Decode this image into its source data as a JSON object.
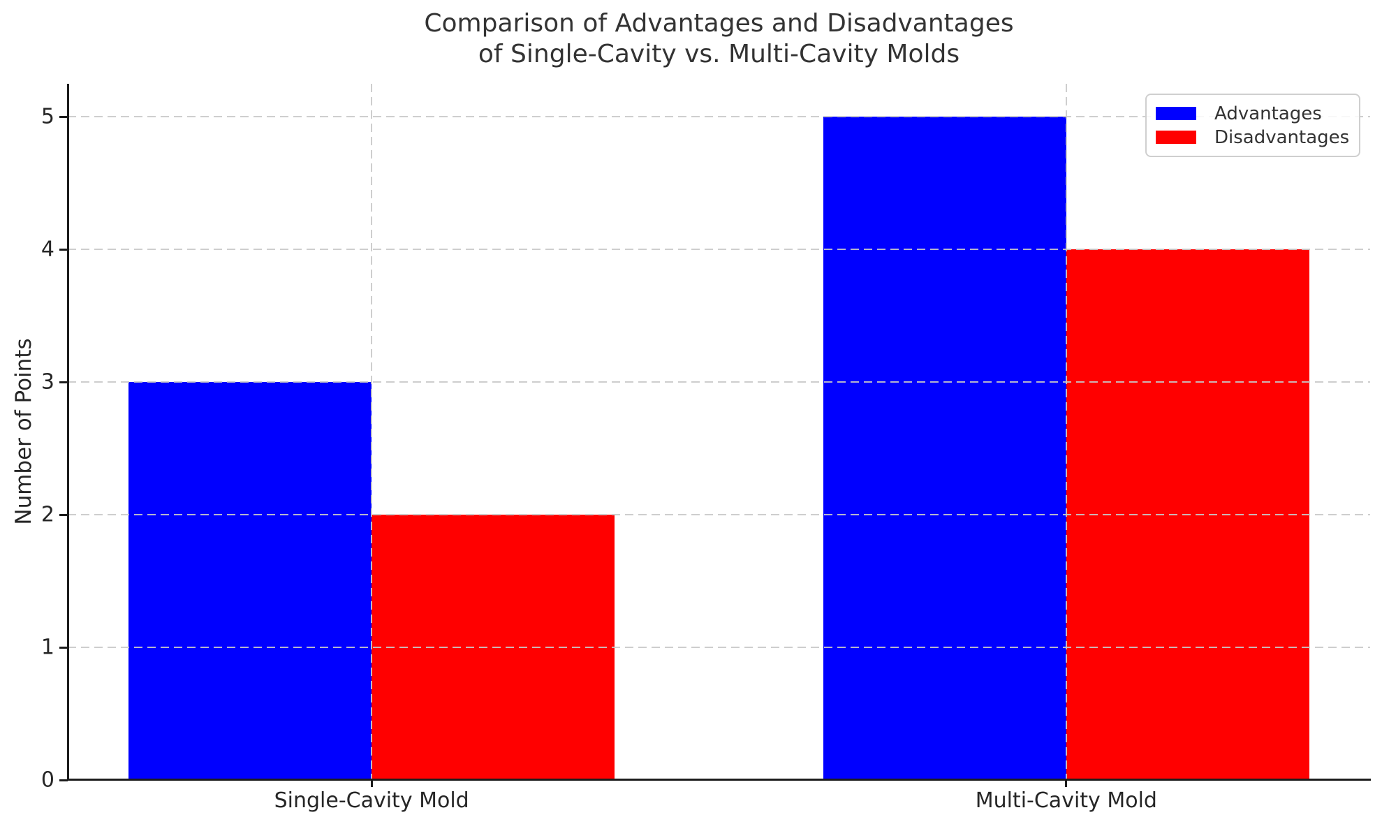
{
  "figure": {
    "title_line1": "Comparison of Advantages and Disadvantages",
    "title_line2": "of Single-Cavity vs. Multi-Cavity Molds"
  },
  "chart_data": {
    "type": "bar",
    "title": "Comparison of Advantages and Disadvantages of Single-Cavity vs. Multi-Cavity Molds",
    "categories": [
      "Single-Cavity Mold",
      "Multi-Cavity Mold"
    ],
    "series": [
      {
        "name": "Advantages",
        "color": "#0000ff",
        "values": [
          3,
          5
        ]
      },
      {
        "name": "Disadvantages",
        "color": "#ff0000",
        "values": [
          2,
          4
        ]
      }
    ],
    "xlabel": "",
    "ylabel": "Number of Points",
    "yticks": [
      0,
      1,
      2,
      3,
      4,
      5
    ],
    "ylim": [
      0,
      5.25
    ],
    "xlim": [
      -0.4375,
      1.4375
    ],
    "bar_width": 0.35,
    "grid": true,
    "grid_linestyle": "dashed",
    "legend_position": "upper right"
  },
  "colors": {
    "advantages": "#0000ff",
    "disadvantages": "#ff0000",
    "grid": "#c9c9c9",
    "spine": "#1c1c1c",
    "text": "#262626",
    "background": "#ffffff"
  }
}
